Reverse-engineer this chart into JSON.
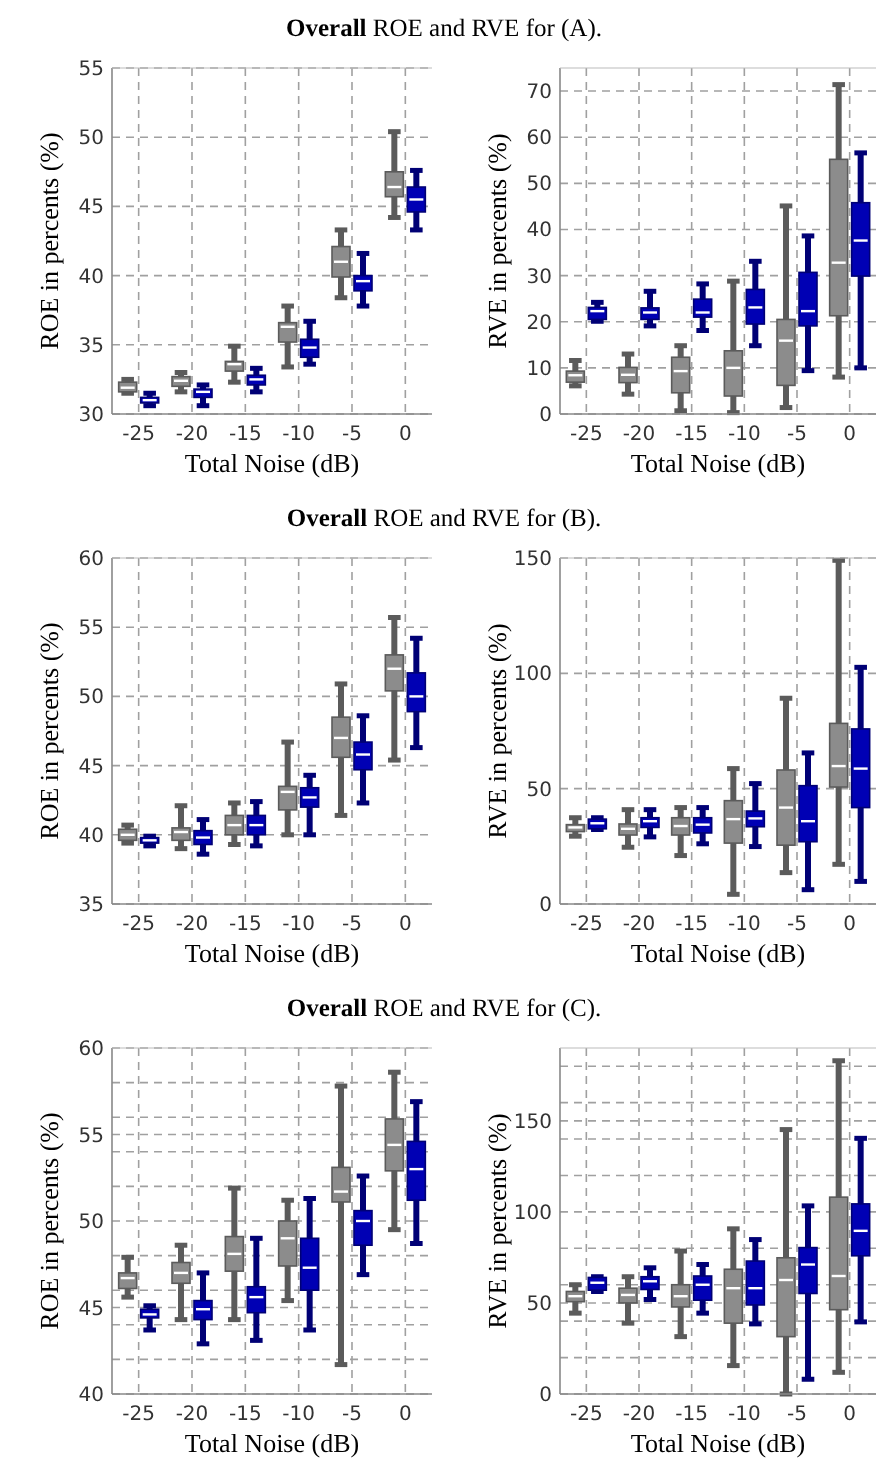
{
  "chart_data": [
    {
      "type": "box",
      "title": "Overall ROE and RVE for (A).",
      "xlabel": "Total Noise (dB)",
      "ylabel": "ROE in percents (%)",
      "categories": [
        "-25",
        "-20",
        "-15",
        "-10",
        "-5",
        "0"
      ],
      "ylim": [
        30,
        55
      ],
      "yticks": [
        30,
        35,
        40,
        45,
        50,
        55
      ],
      "grid": true,
      "series": [
        {
          "color": "#8c8c8c",
          "boxes": [
            {
              "low": 31.5,
              "q1": 31.6,
              "median": 31.9,
              "q3": 32.3,
              "high": 32.5
            },
            {
              "low": 31.6,
              "q1": 32.0,
              "median": 32.4,
              "q3": 32.7,
              "high": 33.0
            },
            {
              "low": 32.3,
              "q1": 33.1,
              "median": 33.6,
              "q3": 33.8,
              "high": 34.9
            },
            {
              "low": 33.4,
              "q1": 35.2,
              "median": 36.3,
              "q3": 36.6,
              "high": 37.8
            },
            {
              "low": 38.4,
              "q1": 39.9,
              "median": 41.0,
              "q3": 42.1,
              "high": 43.3
            },
            {
              "low": 44.2,
              "q1": 45.7,
              "median": 46.4,
              "q3": 47.5,
              "high": 50.4
            }
          ]
        },
        {
          "color": "#0000b4",
          "boxes": [
            {
              "low": 30.6,
              "q1": 30.8,
              "median": 31.0,
              "q3": 31.2,
              "high": 31.5
            },
            {
              "low": 30.6,
              "q1": 31.2,
              "median": 31.6,
              "q3": 31.8,
              "high": 32.1
            },
            {
              "low": 31.6,
              "q1": 32.1,
              "median": 32.5,
              "q3": 32.8,
              "high": 33.3
            },
            {
              "low": 33.6,
              "q1": 34.1,
              "median": 34.8,
              "q3": 35.4,
              "high": 36.7
            },
            {
              "low": 37.8,
              "q1": 38.9,
              "median": 39.6,
              "q3": 40.0,
              "high": 41.6
            },
            {
              "low": 43.3,
              "q1": 44.6,
              "median": 45.5,
              "q3": 46.4,
              "high": 47.6
            }
          ]
        }
      ]
    },
    {
      "type": "box",
      "xlabel": "Total Noise (dB)",
      "ylabel": "RVE in percents (%)",
      "categories": [
        "-25",
        "-20",
        "-15",
        "-10",
        "-5",
        "0"
      ],
      "ylim": [
        0,
        75
      ],
      "yticks": [
        0,
        10,
        20,
        30,
        40,
        50,
        60,
        70
      ],
      "grid": true,
      "series": [
        {
          "color": "#8c8c8c",
          "boxes": [
            {
              "low": 6.1,
              "q1": 6.9,
              "median": 8.4,
              "q3": 9.3,
              "high": 11.6
            },
            {
              "low": 4.3,
              "q1": 6.8,
              "median": 8.5,
              "q3": 10.1,
              "high": 13.0
            },
            {
              "low": 0.7,
              "q1": 4.6,
              "median": 9.3,
              "q3": 12.3,
              "high": 14.8
            },
            {
              "low": 0.3,
              "q1": 3.9,
              "median": 10.0,
              "q3": 13.7,
              "high": 28.8
            },
            {
              "low": 1.4,
              "q1": 6.2,
              "median": 15.9,
              "q3": 20.5,
              "high": 45.1
            },
            {
              "low": 8.0,
              "q1": 21.3,
              "median": 32.8,
              "q3": 55.2,
              "high": 71.4
            }
          ]
        },
        {
          "color": "#0000b4",
          "boxes": [
            {
              "low": 20.1,
              "q1": 20.5,
              "median": 22.3,
              "q3": 23.1,
              "high": 24.2
            },
            {
              "low": 19.1,
              "q1": 20.5,
              "median": 22.0,
              "q3": 23.0,
              "high": 26.6
            },
            {
              "low": 18.1,
              "q1": 21.0,
              "median": 22.0,
              "q3": 24.9,
              "high": 28.2
            },
            {
              "low": 14.8,
              "q1": 19.5,
              "median": 23.1,
              "q3": 27.0,
              "high": 33.1
            },
            {
              "low": 9.4,
              "q1": 19.1,
              "median": 22.3,
              "q3": 30.7,
              "high": 38.6
            },
            {
              "low": 10.0,
              "q1": 29.9,
              "median": 37.6,
              "q3": 45.8,
              "high": 56.6
            }
          ]
        }
      ]
    },
    {
      "type": "box",
      "title": "Overall ROE and RVE for (B).",
      "xlabel": "Total Noise (dB)",
      "ylabel": "ROE in percents (%)",
      "categories": [
        "-25",
        "-20",
        "-15",
        "-10",
        "-5",
        "0"
      ],
      "ylim": [
        35,
        60
      ],
      "yticks": [
        35,
        40,
        45,
        50,
        55,
        60
      ],
      "grid": true,
      "series": [
        {
          "color": "#8c8c8c",
          "boxes": [
            {
              "low": 39.4,
              "q1": 39.6,
              "median": 40.0,
              "q3": 40.4,
              "high": 40.7
            },
            {
              "low": 39.0,
              "q1": 39.6,
              "median": 40.2,
              "q3": 40.5,
              "high": 42.1
            },
            {
              "low": 39.3,
              "q1": 40.0,
              "median": 40.7,
              "q3": 41.4,
              "high": 42.3
            },
            {
              "low": 40.0,
              "q1": 41.8,
              "median": 43.1,
              "q3": 43.5,
              "high": 46.7
            },
            {
              "low": 41.4,
              "q1": 45.6,
              "median": 47.0,
              "q3": 48.5,
              "high": 50.9
            },
            {
              "low": 45.4,
              "q1": 50.4,
              "median": 52.0,
              "q3": 53.0,
              "high": 55.7
            }
          ]
        },
        {
          "color": "#0000b4",
          "boxes": [
            {
              "low": 39.2,
              "q1": 39.4,
              "median": 39.6,
              "q3": 39.8,
              "high": 39.9
            },
            {
              "low": 38.6,
              "q1": 39.3,
              "median": 39.8,
              "q3": 40.3,
              "high": 41.1
            },
            {
              "low": 39.2,
              "q1": 40.0,
              "median": 40.7,
              "q3": 41.4,
              "high": 42.4
            },
            {
              "low": 40.0,
              "q1": 42.0,
              "median": 42.7,
              "q3": 43.4,
              "high": 44.3
            },
            {
              "low": 42.3,
              "q1": 44.7,
              "median": 45.8,
              "q3": 46.7,
              "high": 48.6
            },
            {
              "low": 46.3,
              "q1": 48.9,
              "median": 50.0,
              "q3": 51.7,
              "high": 54.2
            }
          ]
        }
      ]
    },
    {
      "type": "box",
      "xlabel": "Total Noise (dB)",
      "ylabel": "RVE in percents (%)",
      "categories": [
        "-25",
        "-20",
        "-15",
        "-10",
        "-5",
        "0"
      ],
      "ylim": [
        0,
        150
      ],
      "yticks": [
        0,
        50,
        100,
        150
      ],
      "grid": true,
      "series": [
        {
          "color": "#8c8c8c",
          "boxes": [
            {
              "low": 29.4,
              "q1": 31.4,
              "median": 33.2,
              "q3": 34.4,
              "high": 37.4
            },
            {
              "low": 24.6,
              "q1": 29.9,
              "median": 32.6,
              "q3": 34.7,
              "high": 40.9
            },
            {
              "low": 21.0,
              "q1": 29.9,
              "median": 33.8,
              "q3": 37.4,
              "high": 41.8
            },
            {
              "low": 4.2,
              "q1": 26.4,
              "median": 36.8,
              "q3": 44.8,
              "high": 58.7
            },
            {
              "low": 13.6,
              "q1": 25.5,
              "median": 41.8,
              "q3": 58.1,
              "high": 89.2
            },
            {
              "low": 17.2,
              "q1": 50.7,
              "median": 59.8,
              "q3": 78.3,
              "high": 149
            }
          ]
        },
        {
          "color": "#0000b4",
          "boxes": [
            {
              "low": 32.3,
              "q1": 32.6,
              "median": 35.0,
              "q3": 36.8,
              "high": 37.4
            },
            {
              "low": 29.1,
              "q1": 33.2,
              "median": 35.9,
              "q3": 37.4,
              "high": 40.9
            },
            {
              "low": 26.1,
              "q1": 30.8,
              "median": 34.4,
              "q3": 37.4,
              "high": 41.8
            },
            {
              "low": 24.9,
              "q1": 33.5,
              "median": 37.1,
              "q3": 40.3,
              "high": 52.2
            },
            {
              "low": 6.2,
              "q1": 27.0,
              "median": 35.9,
              "q3": 51.3,
              "high": 65.5
            },
            {
              "low": 9.8,
              "q1": 41.8,
              "median": 58.7,
              "q3": 75.9,
              "high": 102.6
            }
          ]
        }
      ]
    },
    {
      "type": "box",
      "title": "Overall ROE and RVE for (C).",
      "xlabel": "Total Noise (dB)",
      "ylabel": "ROE in percents (%)",
      "categories": [
        "-25",
        "-20",
        "-15",
        "-10",
        "-5",
        "0"
      ],
      "ylim": [
        40,
        60
      ],
      "yticks": [
        40,
        {
          "value": 42,
          "label": null
        },
        {
          "value": 44,
          "label": null
        },
        45,
        {
          "value": 46,
          "label": null
        },
        {
          "value": 48,
          "label": null
        },
        50,
        {
          "value": 52,
          "label": null
        },
        {
          "value": 54,
          "label": null
        },
        55,
        {
          "value": 56,
          "label": null
        },
        {
          "value": 58,
          "label": null
        },
        60
      ],
      "grid": true,
      "series": [
        {
          "color": "#8c8c8c",
          "boxes": [
            {
              "low": 45.6,
              "q1": 46.1,
              "median": 46.7,
              "q3": 47.0,
              "high": 47.9
            },
            {
              "low": 44.3,
              "q1": 46.4,
              "median": 47.0,
              "q3": 47.6,
              "high": 48.6
            },
            {
              "low": 44.3,
              "q1": 47.1,
              "median": 48.1,
              "q3": 49.1,
              "high": 51.9
            },
            {
              "low": 45.4,
              "q1": 47.4,
              "median": 49.0,
              "q3": 50.0,
              "high": 51.2
            },
            {
              "low": 41.7,
              "q1": 51.1,
              "median": 51.7,
              "q3": 53.1,
              "high": 57.8
            },
            {
              "low": 49.5,
              "q1": 52.9,
              "median": 54.4,
              "q3": 55.9,
              "high": 58.6
            }
          ]
        },
        {
          "color": "#0000b4",
          "boxes": [
            {
              "low": 43.7,
              "q1": 44.4,
              "median": 44.6,
              "q3": 44.9,
              "high": 45.1
            },
            {
              "low": 42.9,
              "q1": 44.3,
              "median": 44.9,
              "q3": 45.4,
              "high": 47.0
            },
            {
              "low": 43.1,
              "q1": 44.7,
              "median": 45.6,
              "q3": 46.2,
              "high": 49.0
            },
            {
              "low": 43.7,
              "q1": 46.0,
              "median": 47.3,
              "q3": 49.0,
              "high": 51.3
            },
            {
              "low": 46.9,
              "q1": 48.6,
              "median": 50.0,
              "q3": 50.6,
              "high": 52.6
            },
            {
              "low": 48.7,
              "q1": 51.2,
              "median": 53.0,
              "q3": 54.6,
              "high": 56.9
            }
          ]
        }
      ]
    },
    {
      "type": "box",
      "xlabel": "Total Noise (dB)",
      "ylabel": "RVE in percents (%)",
      "categories": [
        "-25",
        "-20",
        "-15",
        "-10",
        "-5",
        "0"
      ],
      "ylim": [
        0,
        190
      ],
      "yticks": [
        0,
        {
          "value": 20,
          "label": null
        },
        {
          "value": 40,
          "label": null
        },
        50,
        {
          "value": 60,
          "label": null
        },
        {
          "value": 80,
          "label": null
        },
        100,
        {
          "value": 120,
          "label": null
        },
        {
          "value": 140,
          "label": null
        },
        150,
        {
          "value": 160,
          "label": null
        },
        {
          "value": 180,
          "label": null
        }
      ],
      "grid": true,
      "series": [
        {
          "color": "#8c8c8c",
          "boxes": [
            {
              "low": 44.4,
              "q1": 50.7,
              "median": 53.7,
              "q3": 56.3,
              "high": 60.0
            },
            {
              "low": 38.9,
              "q1": 50.0,
              "median": 54.4,
              "q3": 58.1,
              "high": 64.4
            },
            {
              "low": 31.5,
              "q1": 47.8,
              "median": 53.7,
              "q3": 60.0,
              "high": 78.5
            },
            {
              "low": 15.6,
              "q1": 38.9,
              "median": 58.1,
              "q3": 68.5,
              "high": 90.7
            },
            {
              "low": 0,
              "q1": 31.5,
              "median": 62.6,
              "q3": 74.8,
              "high": 145.2
            },
            {
              "low": 11.9,
              "q1": 46.3,
              "median": 64.8,
              "q3": 108.1,
              "high": 183
            }
          ]
        },
        {
          "color": "#0000b4",
          "boxes": [
            {
              "low": 56.3,
              "q1": 57.0,
              "median": 61.1,
              "q3": 64.0,
              "high": 64.4
            },
            {
              "low": 51.9,
              "q1": 57.4,
              "median": 61.9,
              "q3": 64.4,
              "high": 69.3
            },
            {
              "low": 44.4,
              "q1": 51.5,
              "median": 60.0,
              "q3": 64.8,
              "high": 71.1
            },
            {
              "low": 38.5,
              "q1": 48.9,
              "median": 58.1,
              "q3": 73.0,
              "high": 84.8
            },
            {
              "low": 8.1,
              "q1": 55.2,
              "median": 71.1,
              "q3": 80.4,
              "high": 103.3
            },
            {
              "low": 39.6,
              "q1": 75.9,
              "median": 89.6,
              "q3": 104.4,
              "high": 140.4
            }
          ]
        }
      ]
    }
  ]
}
